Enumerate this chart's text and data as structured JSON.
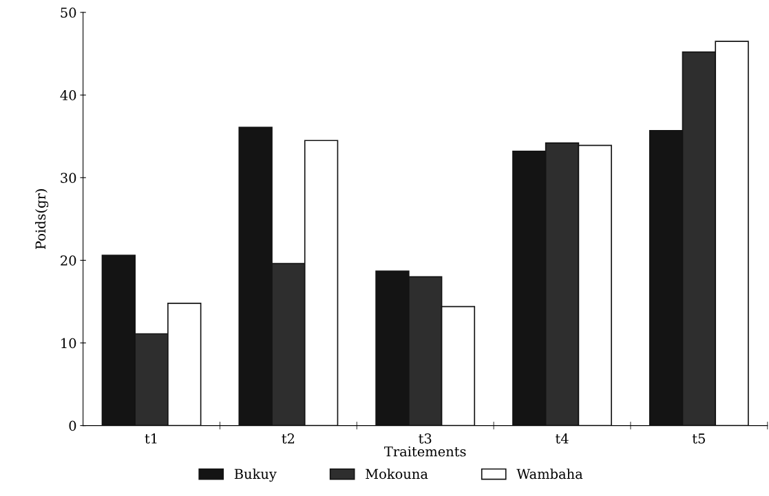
{
  "chart_data": {
    "type": "bar",
    "xlabel": "Traitements",
    "ylabel": "Poids(gr)",
    "categories": [
      "t1",
      "t2",
      "t3",
      "t4",
      "t5"
    ],
    "series": [
      {
        "name": "Bukuy",
        "color": "#141414",
        "values": [
          20.6,
          36.1,
          18.7,
          33.2,
          35.7
        ]
      },
      {
        "name": "Mokouna",
        "color": "#2e2e2e",
        "values": [
          11.1,
          19.6,
          18.0,
          34.2,
          45.2
        ]
      },
      {
        "name": "Wambaha",
        "color": "#ffffff",
        "values": [
          14.8,
          34.5,
          14.4,
          33.9,
          46.5
        ]
      }
    ],
    "ylim": [
      0,
      50
    ],
    "yticks": [
      0,
      10,
      20,
      30,
      40,
      50
    ],
    "grid": false,
    "legend": "bottom"
  }
}
